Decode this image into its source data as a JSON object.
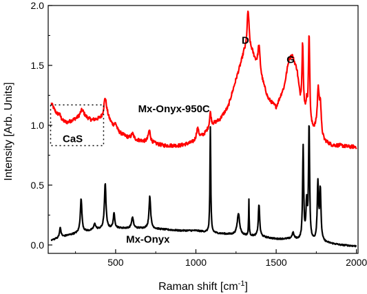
{
  "chart_data": {
    "type": "line",
    "title": "",
    "xlabel": "Raman shift [cm",
    "xlabel_sup": "-1",
    "xlabel_end": "]",
    "ylabel": "Intensity [Arb. Units]",
    "xlim": [
      80,
      2010
    ],
    "ylim": [
      -0.07,
      2.0
    ],
    "x_ticks": [
      500,
      1000,
      1500,
      2000
    ],
    "x_tick_labels": [
      "500",
      "1000",
      "1500",
      "2000"
    ],
    "y_ticks": [
      0.0,
      0.5,
      1.0,
      1.5,
      2.0
    ],
    "y_tick_labels": [
      "0.0",
      "0.5",
      "1.0",
      "1.5",
      "2.0"
    ],
    "grid": false,
    "legend": "none",
    "series": [
      {
        "name": "Mx-Onyx-950C",
        "color": "#ff0000",
        "baseline": [
          [
            100,
            1.18
          ],
          [
            150,
            1.03
          ],
          [
            200,
            1.02
          ],
          [
            250,
            1.05
          ],
          [
            300,
            1.07
          ],
          [
            350,
            1.04
          ],
          [
            400,
            1.05
          ],
          [
            450,
            1.06
          ],
          [
            500,
            0.95
          ],
          [
            600,
            0.88
          ],
          [
            700,
            0.86
          ],
          [
            800,
            0.83
          ],
          [
            900,
            0.83
          ],
          [
            1000,
            0.86
          ],
          [
            1050,
            0.92
          ],
          [
            1100,
            1.0
          ],
          [
            1150,
            1.05
          ],
          [
            1200,
            1.15
          ],
          [
            1250,
            1.38
          ],
          [
            1300,
            1.6
          ],
          [
            1350,
            1.6
          ],
          [
            1400,
            1.42
          ],
          [
            1450,
            1.22
          ],
          [
            1500,
            1.15
          ],
          [
            1550,
            1.32
          ],
          [
            1580,
            1.55
          ],
          [
            1600,
            1.58
          ],
          [
            1630,
            1.45
          ],
          [
            1650,
            1.2
          ],
          [
            1700,
            0.95
          ],
          [
            1750,
            0.95
          ],
          [
            1800,
            0.86
          ],
          [
            1850,
            0.83
          ],
          [
            1900,
            0.83
          ],
          [
            1950,
            0.82
          ],
          [
            2000,
            0.82
          ]
        ],
        "peaks": [
          [
            150,
            0.06,
            12
          ],
          [
            290,
            0.06,
            14
          ],
          [
            435,
            0.17,
            10
          ],
          [
            500,
            0.06,
            10
          ],
          [
            605,
            0.05,
            10
          ],
          [
            710,
            0.1,
            8
          ],
          [
            1010,
            0.1,
            10
          ],
          [
            1090,
            0.12,
            6
          ],
          [
            1325,
            0.35,
            8
          ],
          [
            1393,
            0.22,
            8
          ],
          [
            1665,
            0.55,
            5
          ],
          [
            1690,
            0.15,
            6
          ],
          [
            1705,
            0.8,
            5
          ],
          [
            1762,
            0.35,
            7
          ],
          [
            1775,
            0.25,
            6
          ]
        ],
        "noise": 0.015
      },
      {
        "name": "Mx-Onyx",
        "color": "#000000",
        "baseline": [
          [
            100,
            0.04
          ],
          [
            200,
            0.08
          ],
          [
            300,
            0.11
          ],
          [
            400,
            0.13
          ],
          [
            500,
            0.14
          ],
          [
            600,
            0.14
          ],
          [
            700,
            0.14
          ],
          [
            800,
            0.13
          ],
          [
            900,
            0.12
          ],
          [
            1000,
            0.12
          ],
          [
            1100,
            0.1
          ],
          [
            1200,
            0.09
          ],
          [
            1300,
            0.08
          ],
          [
            1400,
            0.07
          ],
          [
            1500,
            0.05
          ],
          [
            1600,
            0.05
          ],
          [
            1700,
            0.03
          ],
          [
            1800,
            0.02
          ],
          [
            1900,
            0.0
          ],
          [
            2000,
            -0.01
          ]
        ],
        "peaks": [
          [
            155,
            0.08,
            6
          ],
          [
            285,
            0.28,
            6
          ],
          [
            370,
            0.05,
            8
          ],
          [
            435,
            0.38,
            6
          ],
          [
            490,
            0.12,
            6
          ],
          [
            605,
            0.09,
            7
          ],
          [
            713,
            0.27,
            6
          ],
          [
            1090,
            0.88,
            3
          ],
          [
            1265,
            0.18,
            9
          ],
          [
            1330,
            0.3,
            2
          ],
          [
            1393,
            0.27,
            5
          ],
          [
            1605,
            0.05,
            7
          ],
          [
            1668,
            0.78,
            4
          ],
          [
            1690,
            0.3,
            5
          ],
          [
            1705,
            0.97,
            4
          ],
          [
            1760,
            0.48,
            5
          ],
          [
            1775,
            0.42,
            5
          ]
        ],
        "noise": 0.006
      }
    ],
    "annotations": [
      {
        "label": "D",
        "x": 1285,
        "y": 1.68
      },
      {
        "label": "G",
        "x": 1565,
        "y": 1.52
      },
      {
        "label": "Mx-Onyx-950C",
        "x": 640,
        "y": 1.11
      },
      {
        "label": "CaS",
        "x": 170,
        "y": 0.86
      },
      {
        "label": "Mx-Onyx",
        "x": 565,
        "y": 0.02
      }
    ],
    "highlight_box": {
      "x": [
        95,
        425
      ],
      "y": [
        0.83,
        1.17
      ]
    }
  }
}
